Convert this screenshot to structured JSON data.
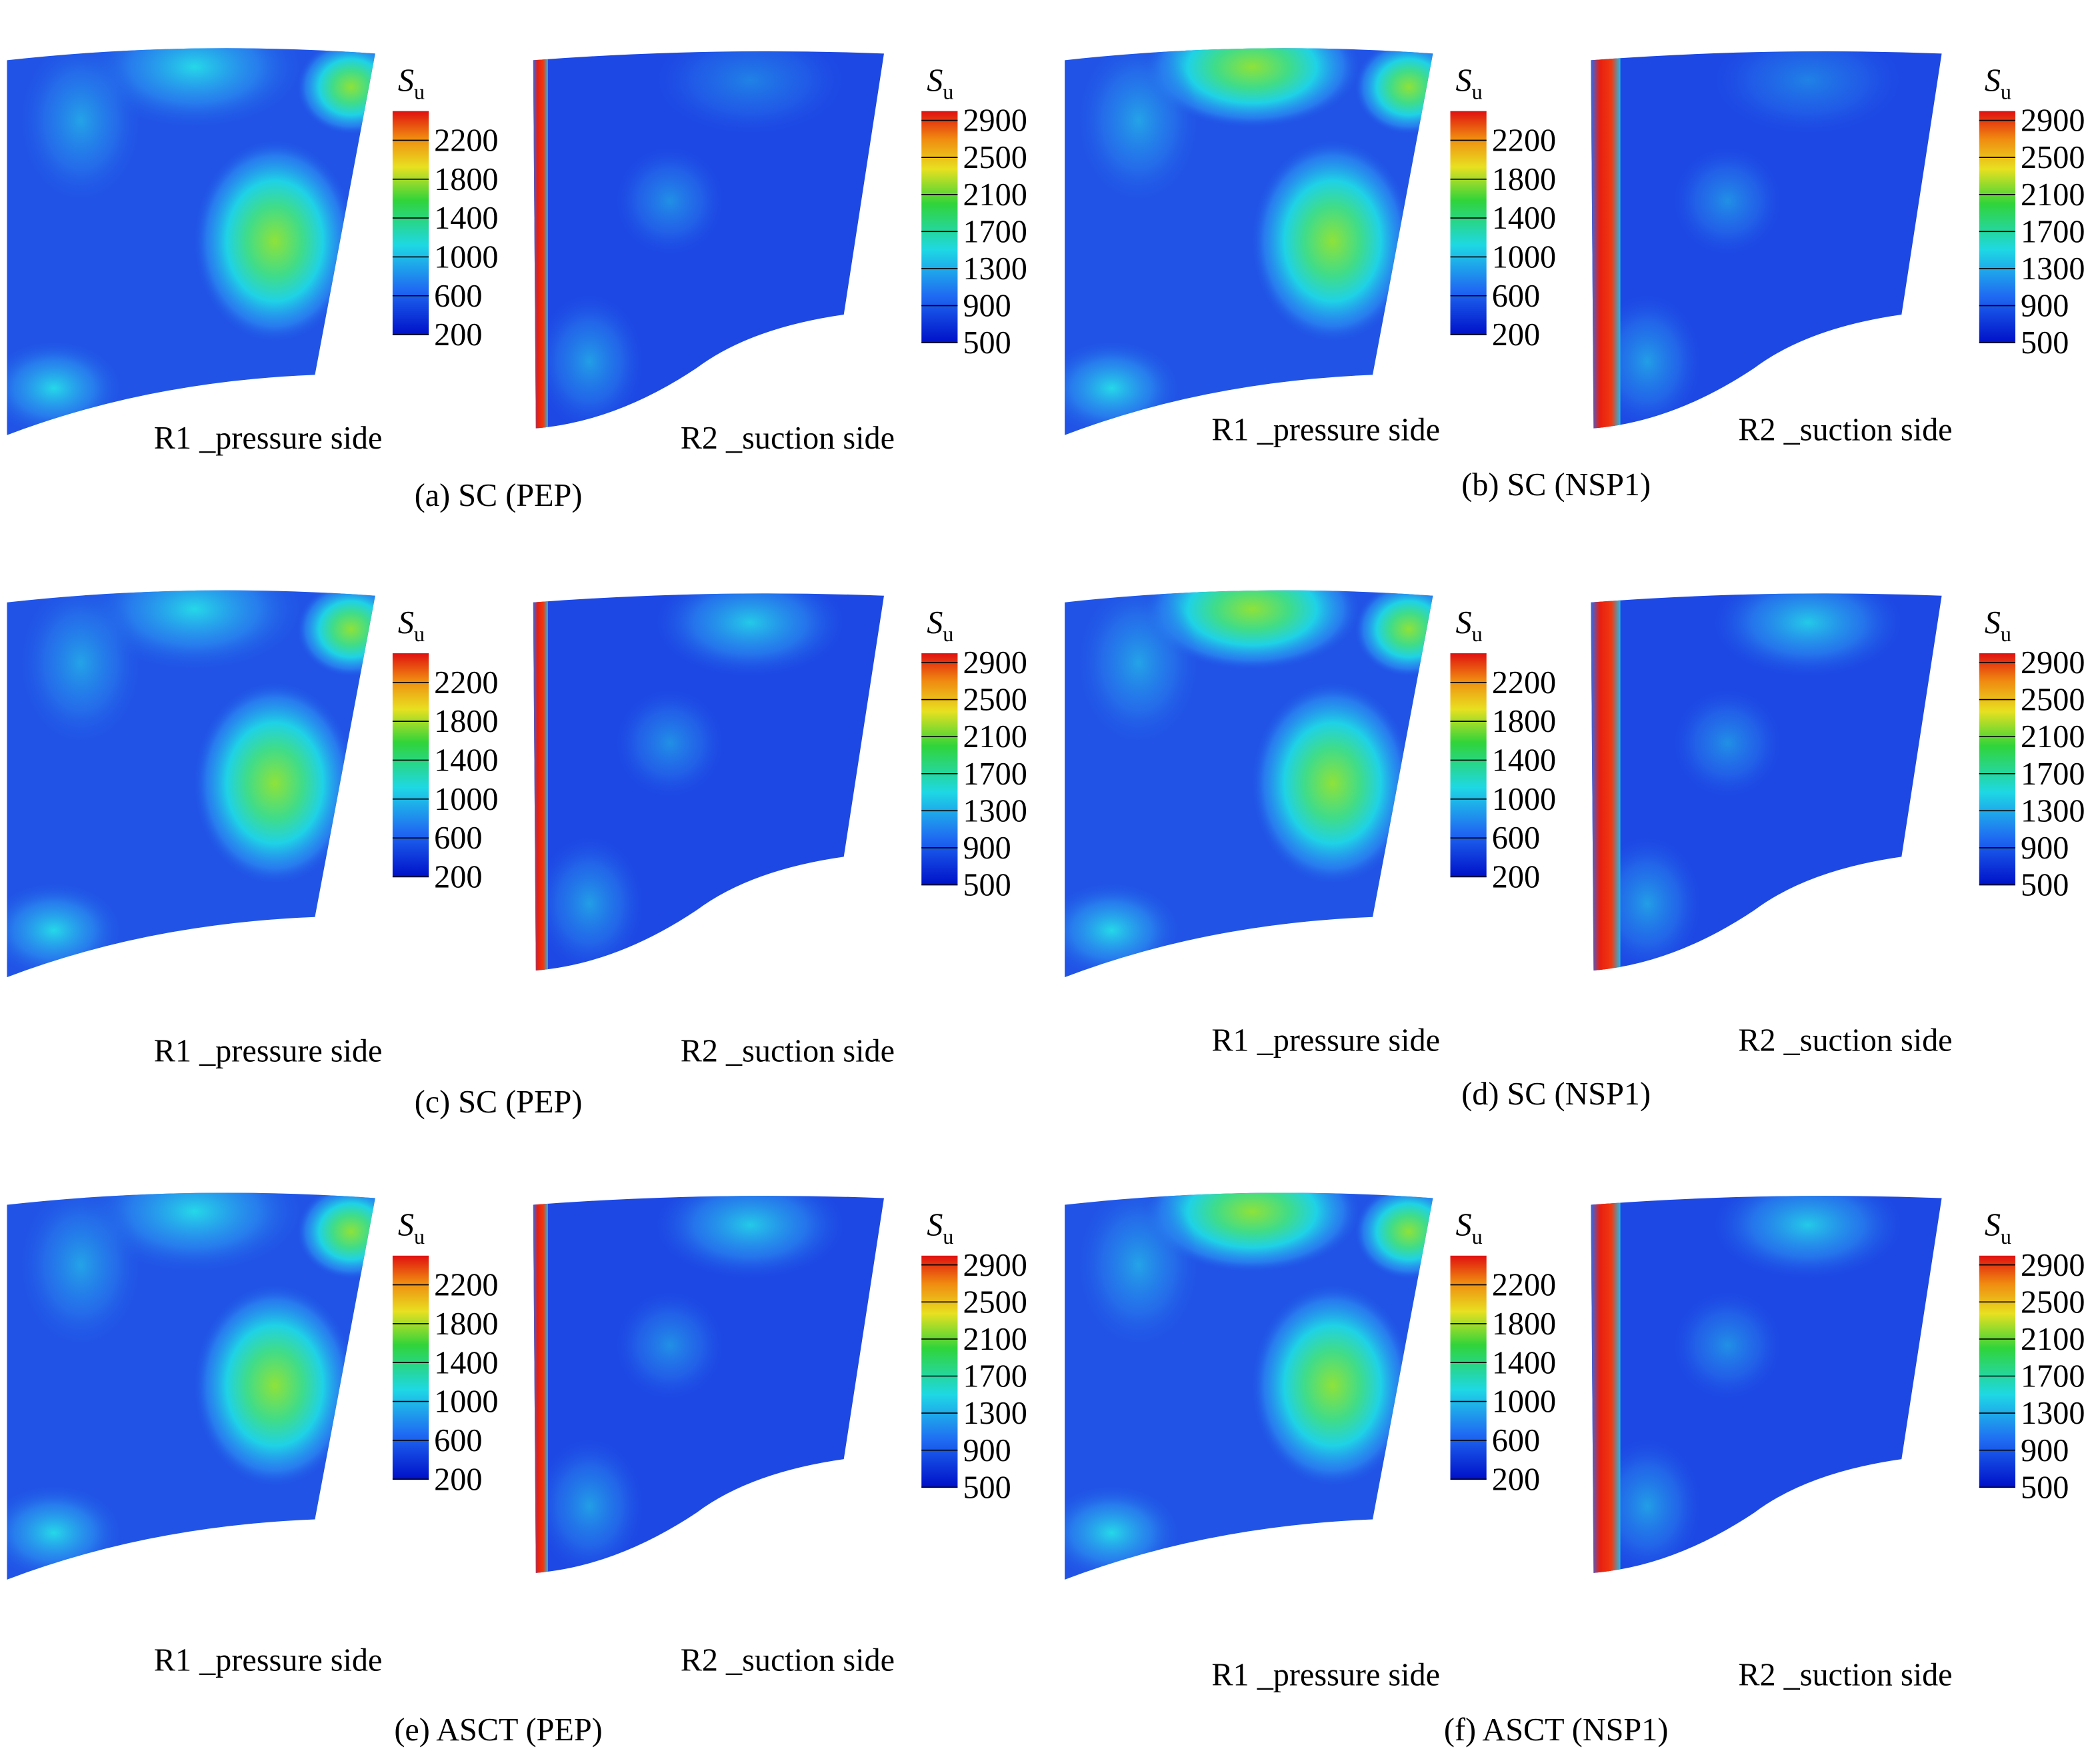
{
  "symbol": "S",
  "subscript": "u",
  "colorbar_left": {
    "lim": [
      200,
      2500
    ],
    "ticks": [
      200,
      600,
      1000,
      1400,
      1800,
      2200
    ]
  },
  "colorbar_right": {
    "lim": [
      500,
      3000
    ],
    "ticks": [
      500,
      900,
      1300,
      1700,
      2100,
      2500,
      2900
    ]
  },
  "panels": [
    {
      "caption": "(a) SC (PEP)",
      "left_label": "R1 _pressure side",
      "right_label": "R2 _suction side"
    },
    {
      "caption": "(b) SC (NSP1)",
      "left_label": "R1 _pressure side",
      "right_label": "R2 _suction side"
    },
    {
      "caption": "(c) SC (PEP)",
      "left_label": "R1 _pressure side",
      "right_label": "R2 _suction side"
    },
    {
      "caption": "(d) SC (NSP1)",
      "left_label": "R1 _pressure side",
      "right_label": "R2 _suction side"
    },
    {
      "caption": "(e) ASCT (PEP)",
      "left_label": "R1 _pressure side",
      "right_label": "R2 _suction side"
    },
    {
      "caption": "(f) ASCT (NSP1)",
      "left_label": "R1 _pressure side",
      "right_label": "R2 _suction side"
    }
  ]
}
